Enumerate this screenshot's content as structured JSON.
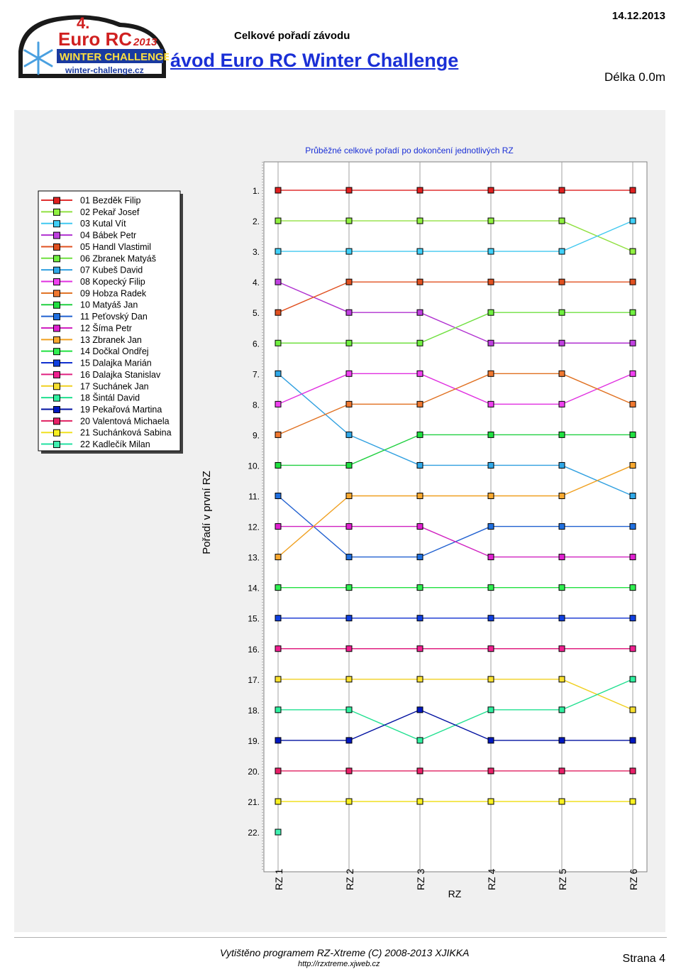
{
  "header": {
    "title": "Celkové pořadí závodu",
    "date": "14.12.2013",
    "event": "ávod Euro RC Winter Challenge",
    "length": "Délka 0.0m"
  },
  "logo": {
    "number": "4.",
    "brand": "Euro RC",
    "year": "2013",
    "banner": "WINTER CHALLENGE",
    "domain": "winter-challenge.cz"
  },
  "footer": {
    "program": "Vytištěno programem RZ-Xtreme (C) 2008-2013  XJIKKA",
    "url": "http://rzxtreme.xjweb.cz",
    "page": "Strana 4"
  },
  "chart_data": {
    "type": "line",
    "title": "Průběžné celkové pořadí po dokončení jednotlivých RZ",
    "xlabel": "RZ",
    "ylabel": "Pořadí v první RZ",
    "categories": [
      "RZ 1",
      "RZ 2",
      "RZ 3",
      "RZ 4",
      "RZ 5",
      "RZ 6"
    ],
    "y_ticks": [
      "1.",
      "2.",
      "3.",
      "4.",
      "5.",
      "6.",
      "7.",
      "8.",
      "9.",
      "10.",
      "11.",
      "12.",
      "13.",
      "14.",
      "15.",
      "16.",
      "17.",
      "18.",
      "19.",
      "20.",
      "21.",
      "22."
    ],
    "ylim": [
      1,
      22
    ],
    "y_inverted": true,
    "grid": true,
    "legend_position": "left",
    "series": [
      {
        "name": "01 Bezděk Filip",
        "values": [
          1,
          1,
          1,
          1,
          1,
          1
        ],
        "line_color": "#e03030",
        "marker_color": "#e02020"
      },
      {
        "name": "02 Pekař Josef",
        "values": [
          2,
          2,
          2,
          2,
          2,
          3
        ],
        "line_color": "#90e040",
        "marker_color": "#90f040"
      },
      {
        "name": "03 Kutal Vít",
        "values": [
          3,
          3,
          3,
          3,
          3,
          2
        ],
        "line_color": "#40c8f0",
        "marker_color": "#40d0f8"
      },
      {
        "name": "04 Bábek Petr",
        "values": [
          4,
          5,
          5,
          6,
          6,
          6
        ],
        "line_color": "#b030d0",
        "marker_color": "#c040e0"
      },
      {
        "name": "05 Handl Vlastimil",
        "values": [
          5,
          4,
          4,
          4,
          4,
          4
        ],
        "line_color": "#e05020",
        "marker_color": "#e05020"
      },
      {
        "name": "06 Zbranek Matyáš",
        "values": [
          6,
          6,
          6,
          5,
          5,
          5
        ],
        "line_color": "#70e040",
        "marker_color": "#70f040"
      },
      {
        "name": "07 Kubeš David",
        "values": [
          7,
          9,
          10,
          10,
          10,
          11
        ],
        "line_color": "#30a0e0",
        "marker_color": "#30a8e8"
      },
      {
        "name": "08 Kopecký Filip",
        "values": [
          8,
          7,
          7,
          8,
          8,
          7
        ],
        "line_color": "#e030e0",
        "marker_color": "#f040f0"
      },
      {
        "name": "09 Hobza Radek",
        "values": [
          9,
          8,
          8,
          7,
          7,
          8
        ],
        "line_color": "#e07020",
        "marker_color": "#f07830"
      },
      {
        "name": "10 Matyáš Jan",
        "values": [
          10,
          10,
          9,
          9,
          9,
          9
        ],
        "line_color": "#20d040",
        "marker_color": "#20e040"
      },
      {
        "name": "11 Peťovský Dan",
        "values": [
          11,
          13,
          13,
          12,
          12,
          12
        ],
        "line_color": "#2060d0",
        "marker_color": "#2070e0"
      },
      {
        "name": "12 Šíma Petr",
        "values": [
          12,
          12,
          12,
          13,
          13,
          13
        ],
        "line_color": "#d020c0",
        "marker_color": "#e020d0"
      },
      {
        "name": "13 Zbranek Jan",
        "values": [
          13,
          11,
          11,
          11,
          11,
          10
        ],
        "line_color": "#f0a020",
        "marker_color": "#f8a830"
      },
      {
        "name": "14 Dočkal Ondřej",
        "values": [
          14,
          14,
          14,
          14,
          14,
          14
        ],
        "line_color": "#20e040",
        "marker_color": "#30f050"
      },
      {
        "name": "15 Dalajka Marián",
        "values": [
          15,
          15,
          15,
          15,
          15,
          15
        ],
        "line_color": "#1030d0",
        "marker_color": "#1040e0"
      },
      {
        "name": "16 Dalajka Stanislav",
        "values": [
          16,
          16,
          16,
          16,
          16,
          16
        ],
        "line_color": "#e02080",
        "marker_color": "#f02090"
      },
      {
        "name": "17 Suchánek Jan",
        "values": [
          17,
          17,
          17,
          17,
          17,
          18
        ],
        "line_color": "#f0d020",
        "marker_color": "#f8e030"
      },
      {
        "name": "18 Šintál David",
        "values": [
          18,
          18,
          19,
          18,
          18,
          17
        ],
        "line_color": "#20e090",
        "marker_color": "#30f0a0"
      },
      {
        "name": "19 Pekařová Martina",
        "values": [
          19,
          19,
          18,
          19,
          19,
          19
        ],
        "line_color": "#0010a0",
        "marker_color": "#0018c0"
      },
      {
        "name": "20 Valentová Michaela",
        "values": [
          20,
          20,
          20,
          20,
          20,
          20
        ],
        "line_color": "#e02060",
        "marker_color": "#e82068"
      },
      {
        "name": "21 Suchánková Sabina",
        "values": [
          21,
          21,
          21,
          21,
          21,
          21
        ],
        "line_color": "#f0e020",
        "marker_color": "#f8f020"
      },
      {
        "name": "22 Kadlečík Milan",
        "values": [
          22,
          null,
          null,
          null,
          null,
          null
        ],
        "line_color": "#20e0a0",
        "marker_color": "#40f0b0"
      }
    ]
  }
}
